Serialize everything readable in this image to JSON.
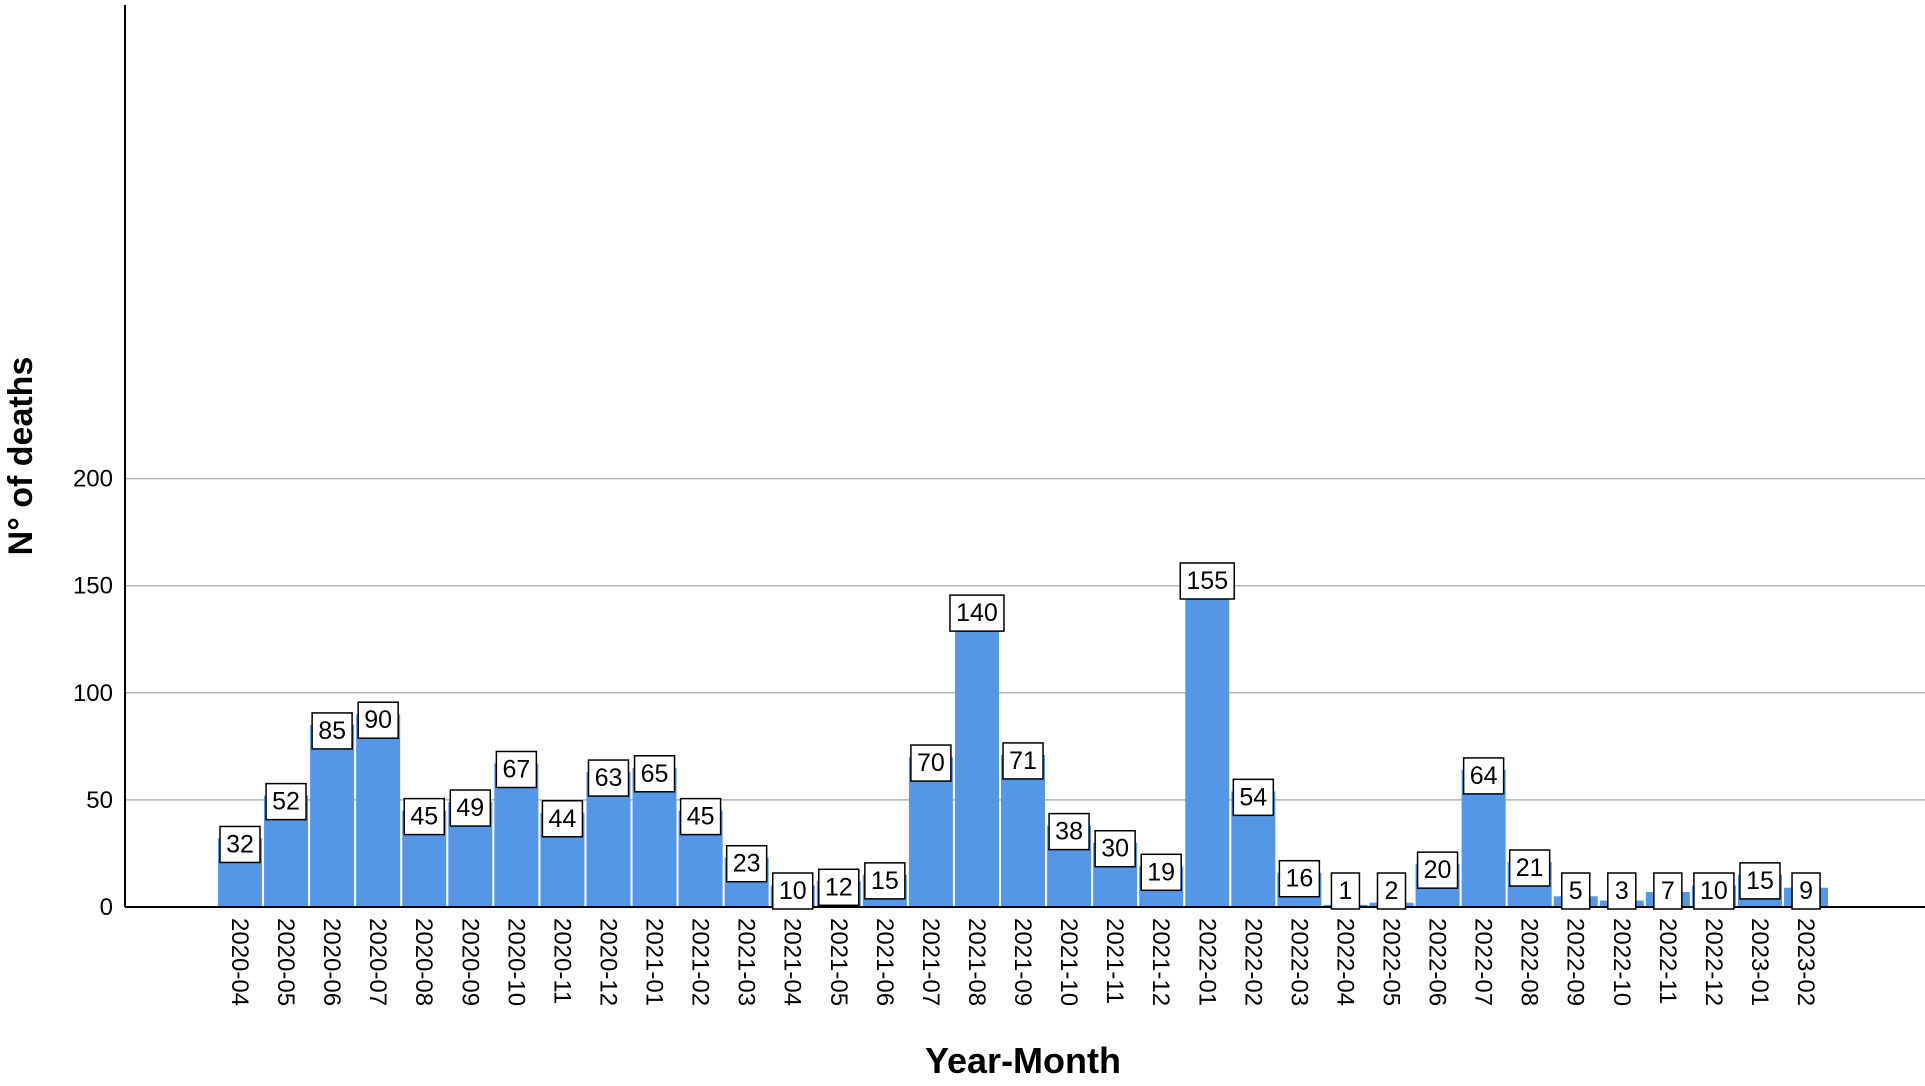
{
  "chart_data": {
    "type": "bar",
    "title": "",
    "xlabel": "Year-Month",
    "ylabel": "N° of deaths",
    "ylim": [
      0,
      210
    ],
    "yticks": [
      0,
      50,
      100,
      150,
      200
    ],
    "grid": "horizontal",
    "bar_color": "#5596e6",
    "categories": [
      "2020-04",
      "2020-05",
      "2020-06",
      "2020-07",
      "2020-08",
      "2020-09",
      "2020-10",
      "2020-11",
      "2020-12",
      "2021-01",
      "2021-02",
      "2021-03",
      "2021-04",
      "2021-05",
      "2021-06",
      "2021-07",
      "2021-08",
      "2021-09",
      "2021-10",
      "2021-11",
      "2021-12",
      "2022-01",
      "2022-02",
      "2022-03",
      "2022-04",
      "2022-05",
      "2022-06",
      "2022-07",
      "2022-08",
      "2022-09",
      "2022-10",
      "2022-11",
      "2022-12",
      "2023-01",
      "2023-02"
    ],
    "values": [
      32,
      52,
      85,
      90,
      45,
      49,
      67,
      44,
      63,
      65,
      45,
      23,
      10,
      12,
      15,
      70,
      140,
      71,
      38,
      30,
      19,
      155,
      54,
      16,
      1,
      2,
      20,
      64,
      21,
      5,
      3,
      7,
      10,
      15,
      9
    ]
  }
}
